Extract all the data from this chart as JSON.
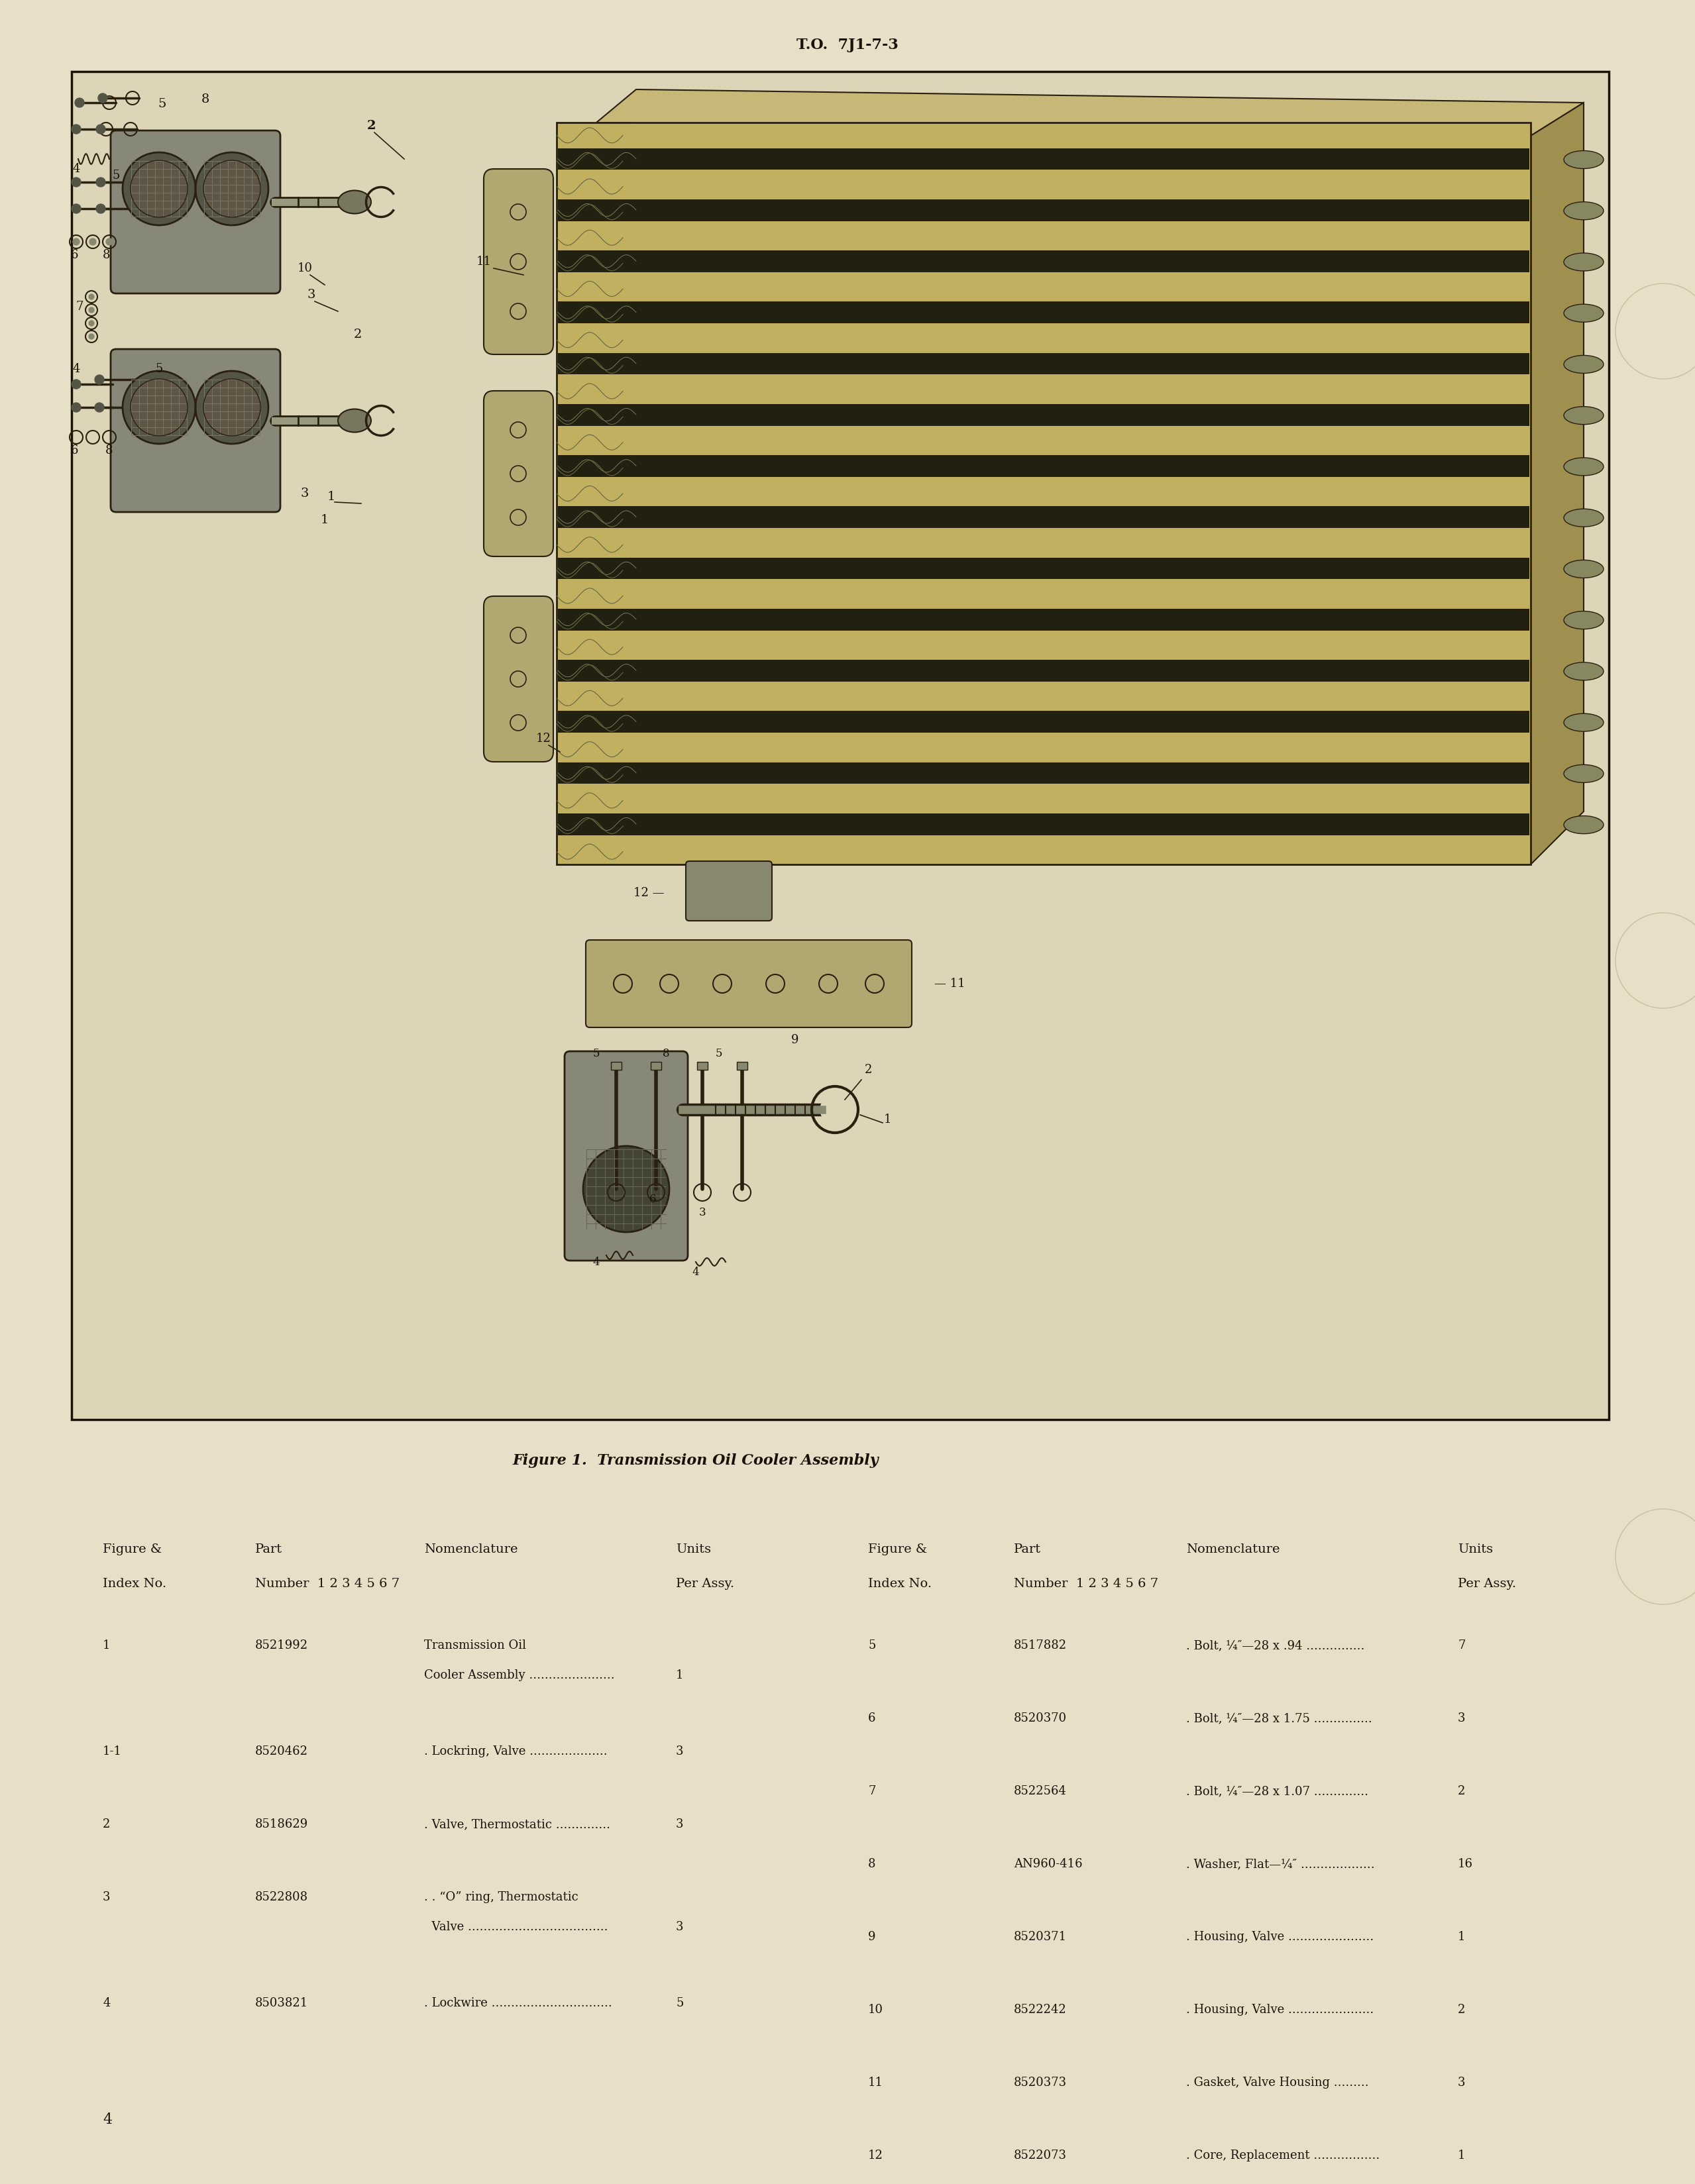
{
  "page_bg": "#e8dfc8",
  "box_bg": "#ddd5b8",
  "header_text": "T.O.  7J1-7-3",
  "figure_caption": "Figure 1.  Transmission Oil Cooler Assembly",
  "page_number": "4",
  "parts_left": [
    {
      "index": "1",
      "part": "8521992",
      "nom1": "Transmission Oil",
      "nom2": "Cooler Assembly ......................",
      "units": "1"
    },
    {
      "index": "1-1",
      "part": "8520462",
      "nom1": ". Lockring, Valve ....................",
      "nom2": "",
      "units": "3"
    },
    {
      "index": "2",
      "part": "8518629",
      "nom1": ". Valve, Thermostatic ..............",
      "nom2": "",
      "units": "3"
    },
    {
      "index": "3",
      "part": "8522808",
      "nom1": ". . “O” ring, Thermostatic",
      "nom2": "  Valve ....................................",
      "units": "3"
    },
    {
      "index": "4",
      "part": "8503821",
      "nom1": ". Lockwire ...............................",
      "nom2": "",
      "units": "5"
    }
  ],
  "parts_right": [
    {
      "index": "5",
      "part": "8517882",
      "nom1": ". Bolt, ¼″—28 x .94 ...............",
      "nom2": "",
      "units": "7"
    },
    {
      "index": "6",
      "part": "8520370",
      "nom1": ". Bolt, ¼″—28 x 1.75 ...............",
      "nom2": "",
      "units": "3"
    },
    {
      "index": "7",
      "part": "8522564",
      "nom1": ". Bolt, ¼″—28 x 1.07 ..............",
      "nom2": "",
      "units": "2"
    },
    {
      "index": "8",
      "part": "AN960-416",
      "nom1": ". Washer, Flat—¼″ ...................",
      "nom2": "",
      "units": "16"
    },
    {
      "index": "9",
      "part": "8520371",
      "nom1": ". Housing, Valve ......................",
      "nom2": "",
      "units": "1"
    },
    {
      "index": "10",
      "part": "8522242",
      "nom1": ". Housing, Valve ......................",
      "nom2": "",
      "units": "2"
    },
    {
      "index": "11",
      "part": "8520373",
      "nom1": ". Gasket, Valve Housing .........",
      "nom2": "",
      "units": "3"
    },
    {
      "index": "12",
      "part": "8522073",
      "nom1": ". Core, Replacement .................",
      "nom2": "",
      "units": "1"
    }
  ],
  "text_color": "#1a1208",
  "border_color": "#1a1208",
  "lc": "#2a2010"
}
